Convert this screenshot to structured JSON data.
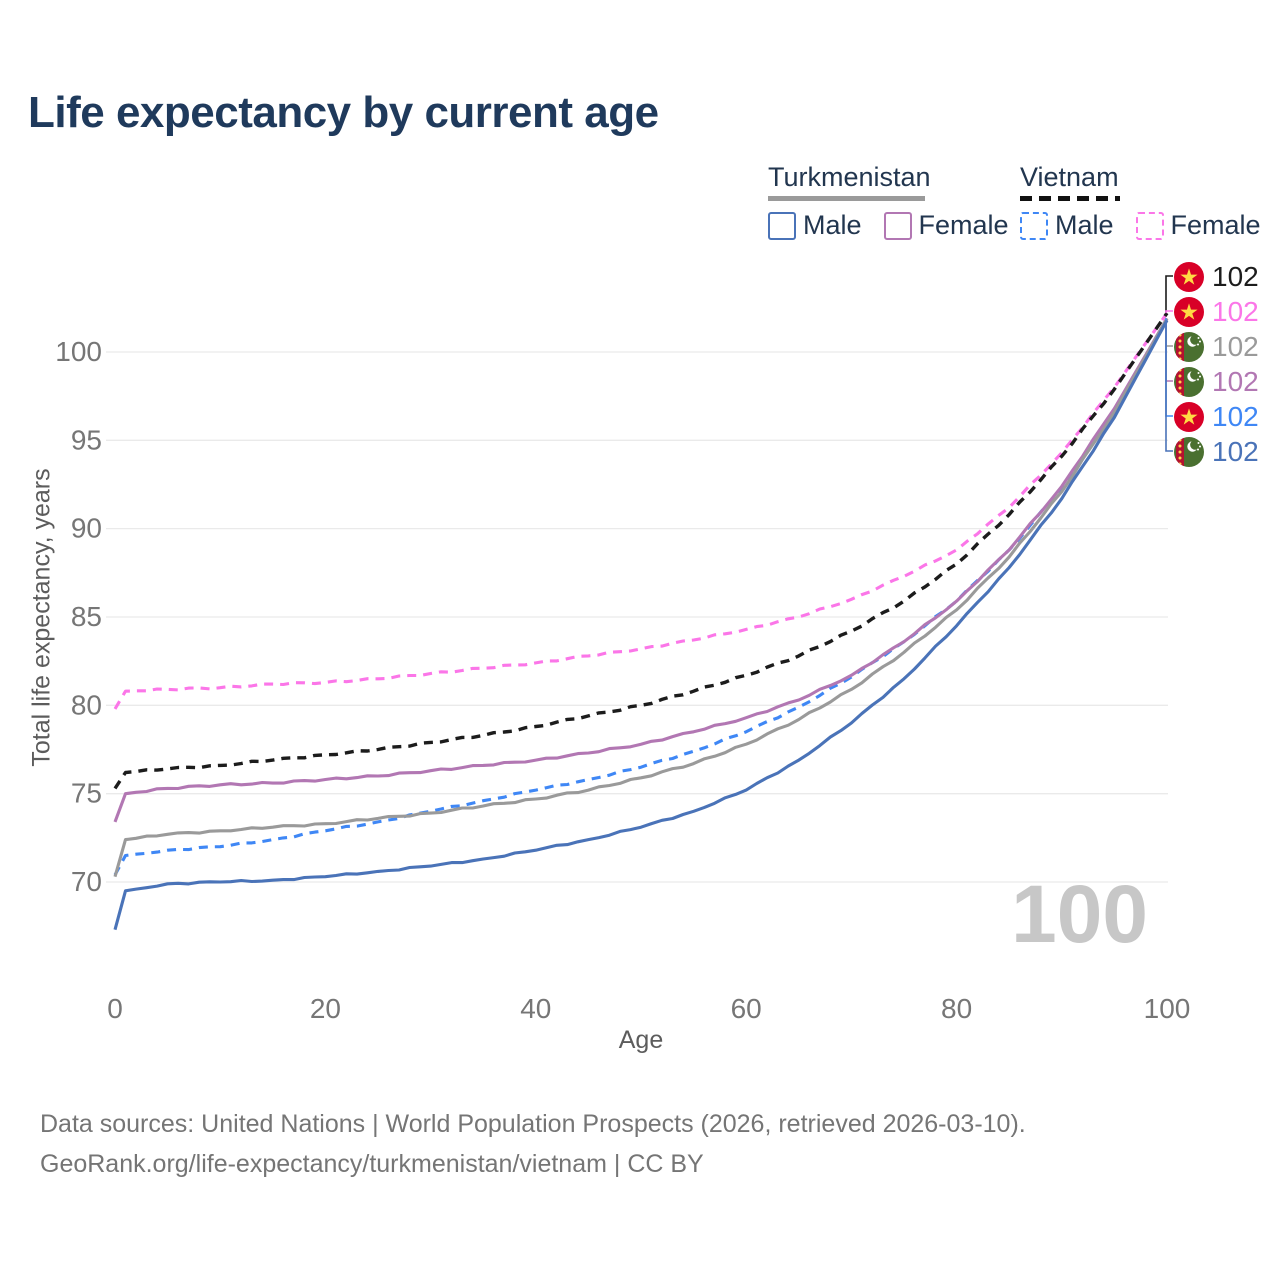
{
  "title": "Life expectancy by current age",
  "legend": {
    "groups": [
      {
        "country": "Turkmenistan",
        "line_style": "solid",
        "items": [
          {
            "label": "Male",
            "color": "#4a73b8"
          },
          {
            "label": "Female",
            "color": "#b277b3"
          }
        ]
      },
      {
        "country": "Vietnam",
        "line_style": "dashed",
        "items": [
          {
            "label": "Male",
            "color": "#3f87f5"
          },
          {
            "label": "Female",
            "color": "#fb76e8"
          }
        ]
      }
    ]
  },
  "chart_data": {
    "type": "line",
    "title": "Life expectancy by current age",
    "xlabel": "Age",
    "ylabel": "Total life expectancy, years",
    "x_ticks": [
      0,
      20,
      40,
      60,
      80,
      100
    ],
    "y_ticks": [
      70,
      75,
      80,
      85,
      90,
      95,
      100
    ],
    "xlim": [
      0,
      100
    ],
    "ylim": [
      66.5,
      103
    ],
    "grid": "horizontal-only",
    "x": [
      0,
      1,
      5,
      10,
      15,
      20,
      25,
      30,
      35,
      40,
      45,
      50,
      55,
      60,
      65,
      70,
      75,
      80,
      85,
      90,
      95,
      100
    ],
    "series": [
      {
        "key": "vn_female",
        "name": "Vietnam Female",
        "color": "#fb76e8",
        "dash": true,
        "values": [
          79.8,
          80.8,
          80.9,
          81.0,
          81.2,
          81.3,
          81.5,
          81.8,
          82.1,
          82.4,
          82.8,
          83.2,
          83.7,
          84.3,
          85.0,
          86.0,
          87.3,
          88.8,
          91.2,
          94.3,
          98.0,
          102.2
        ]
      },
      {
        "key": "vn_total",
        "name": "Vietnam",
        "color": "#1c1c1c",
        "dash": true,
        "values": [
          75.3,
          76.2,
          76.4,
          76.6,
          76.9,
          77.2,
          77.5,
          77.9,
          78.3,
          78.8,
          79.4,
          80.0,
          80.8,
          81.7,
          82.8,
          84.2,
          85.9,
          88.0,
          90.8,
          94.1,
          97.9,
          102.2
        ]
      },
      {
        "key": "vn_male",
        "name": "Vietnam Male",
        "color": "#3f87f5",
        "dash": true,
        "values": [
          70.4,
          71.5,
          71.8,
          72.0,
          72.4,
          72.9,
          73.4,
          74.0,
          74.6,
          75.2,
          75.8,
          76.5,
          77.4,
          78.5,
          79.9,
          81.6,
          83.6,
          85.9,
          88.8,
          92.3,
          96.7,
          101.9
        ]
      },
      {
        "key": "tm_female",
        "name": "Turkmenistan Female",
        "color": "#b277b3",
        "dash": false,
        "values": [
          73.4,
          75.0,
          75.3,
          75.5,
          75.6,
          75.8,
          76.0,
          76.3,
          76.6,
          76.9,
          77.3,
          77.8,
          78.5,
          79.3,
          80.3,
          81.7,
          83.6,
          85.9,
          88.8,
          92.4,
          96.8,
          101.9
        ]
      },
      {
        "key": "tm_total",
        "name": "Turkmenistan",
        "color": "#9a9a9a",
        "dash": false,
        "values": [
          70.3,
          72.4,
          72.7,
          72.9,
          73.1,
          73.3,
          73.6,
          73.9,
          74.3,
          74.7,
          75.2,
          75.9,
          76.7,
          77.8,
          79.2,
          80.9,
          83.0,
          85.4,
          88.4,
          92.1,
          96.6,
          101.9
        ]
      },
      {
        "key": "tm_male",
        "name": "Turkmenistan Male",
        "color": "#4a73b8",
        "dash": false,
        "values": [
          67.3,
          69.5,
          69.9,
          70.0,
          70.1,
          70.3,
          70.6,
          70.9,
          71.3,
          71.8,
          72.4,
          73.1,
          74.0,
          75.2,
          76.9,
          79.0,
          81.5,
          84.5,
          87.8,
          91.7,
          96.3,
          101.8
        ]
      }
    ]
  },
  "end_labels": [
    {
      "series": "vn_total",
      "flag": "vietnam",
      "value": "102"
    },
    {
      "series": "vn_female",
      "flag": "vietnam",
      "value": "102"
    },
    {
      "series": "tm_total",
      "flag": "turkmenistan",
      "value": "102"
    },
    {
      "series": "tm_female",
      "flag": "turkmenistan",
      "value": "102"
    },
    {
      "series": "vn_male",
      "flag": "vietnam",
      "value": "102"
    },
    {
      "series": "tm_male",
      "flag": "turkmenistan",
      "value": "102"
    }
  ],
  "watermark": "100",
  "footer": {
    "line1": "Data sources: United Nations | World Population Prospects (2026, retrieved 2026-03-10).",
    "line2": "GeoRank.org/life-expectancy/turkmenistan/vietnam | CC BY"
  }
}
